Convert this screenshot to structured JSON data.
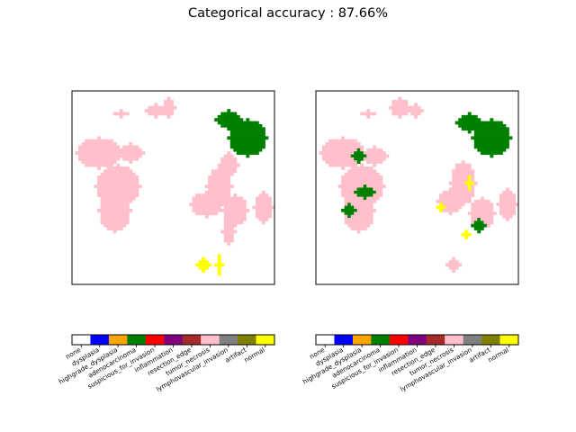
{
  "title": "Categorical accuracy : 87.66%",
  "chart_data": [
    {
      "type": "heatmap",
      "name": "ground-truth",
      "grid": [
        64,
        64
      ],
      "categories": [
        "none",
        "dysplasia",
        "highgrade_dysplasia",
        "adenocarcinoma",
        "suspicious_for_invasion",
        "inflammation",
        "resection_edge",
        "tumor_necrosis",
        "lymphovascular_invasion",
        "artifact",
        "normal"
      ],
      "colors": [
        "#ffffff",
        "#0000ff",
        "#ffa500",
        "#008000",
        "#ff0000",
        "#800080",
        "#a52a2a",
        "#ffc0cb",
        "#808080",
        "#808000",
        "#ffff00"
      ],
      "regions": [
        {
          "category": "tumor_necrosis",
          "cx": 26,
          "cy": 6,
          "rx": 3,
          "ry": 2
        },
        {
          "category": "tumor_necrosis",
          "cx": 30,
          "cy": 5,
          "rx": 2,
          "ry": 3
        },
        {
          "category": "tumor_necrosis",
          "cx": 15,
          "cy": 7,
          "rx": 2,
          "ry": 1
        },
        {
          "category": "tumor_necrosis",
          "cx": 8,
          "cy": 20,
          "rx": 7,
          "ry": 5
        },
        {
          "category": "tumor_necrosis",
          "cx": 18,
          "cy": 20,
          "rx": 4,
          "ry": 3
        },
        {
          "category": "tumor_necrosis",
          "cx": 14,
          "cy": 31,
          "rx": 7,
          "ry": 7
        },
        {
          "category": "tumor_necrosis",
          "cx": 13,
          "cy": 39,
          "rx": 5,
          "ry": 7
        },
        {
          "category": "tumor_necrosis",
          "cx": 46,
          "cy": 31,
          "rx": 4,
          "ry": 6
        },
        {
          "category": "tumor_necrosis",
          "cx": 42,
          "cy": 37,
          "rx": 5,
          "ry": 4
        },
        {
          "category": "tumor_necrosis",
          "cx": 49,
          "cy": 24,
          "rx": 3,
          "ry": 4
        },
        {
          "category": "tumor_necrosis",
          "cx": 51,
          "cy": 39,
          "rx": 4,
          "ry": 5
        },
        {
          "category": "tumor_necrosis",
          "cx": 60,
          "cy": 38,
          "rx": 3,
          "ry": 5
        },
        {
          "category": "tumor_necrosis",
          "cx": 49,
          "cy": 46,
          "rx": 2,
          "ry": 4
        },
        {
          "category": "adenocarcinoma",
          "cx": 55,
          "cy": 15,
          "rx": 6,
          "ry": 6
        },
        {
          "category": "adenocarcinoma",
          "cx": 49,
          "cy": 9,
          "rx": 4,
          "ry": 3
        },
        {
          "category": "normal",
          "cx": 41,
          "cy": 57,
          "rx": 2,
          "ry": 2
        },
        {
          "category": "normal",
          "cx": 46,
          "cy": 57,
          "rx": 1,
          "ry": 3
        }
      ]
    },
    {
      "type": "heatmap",
      "name": "prediction",
      "grid": [
        64,
        64
      ],
      "categories": [
        "none",
        "dysplasia",
        "highgrade_dysplasia",
        "adenocarcinoma",
        "suspicious_for_invasion",
        "inflammation",
        "resection_edge",
        "tumor_necrosis",
        "lymphovascular_invasion",
        "artifact",
        "normal"
      ],
      "colors": [
        "#ffffff",
        "#0000ff",
        "#ffa500",
        "#008000",
        "#ff0000",
        "#800080",
        "#a52a2a",
        "#ffc0cb",
        "#808080",
        "#808000",
        "#ffff00"
      ],
      "regions": [
        {
          "category": "tumor_necrosis",
          "cx": 26,
          "cy": 5,
          "rx": 3,
          "ry": 3
        },
        {
          "category": "tumor_necrosis",
          "cx": 31,
          "cy": 6,
          "rx": 2,
          "ry": 2
        },
        {
          "category": "tumor_necrosis",
          "cx": 16,
          "cy": 7,
          "rx": 2,
          "ry": 1
        },
        {
          "category": "tumor_necrosis",
          "cx": 8,
          "cy": 20,
          "rx": 7,
          "ry": 5
        },
        {
          "category": "tumor_necrosis",
          "cx": 18,
          "cy": 21,
          "rx": 4,
          "ry": 3
        },
        {
          "category": "tumor_necrosis",
          "cx": 14,
          "cy": 31,
          "rx": 7,
          "ry": 7
        },
        {
          "category": "tumor_necrosis",
          "cx": 13,
          "cy": 39,
          "rx": 5,
          "ry": 7
        },
        {
          "category": "tumor_necrosis",
          "cx": 46,
          "cy": 30,
          "rx": 4,
          "ry": 7
        },
        {
          "category": "tumor_necrosis",
          "cx": 42,
          "cy": 36,
          "rx": 4,
          "ry": 4
        },
        {
          "category": "tumor_necrosis",
          "cx": 52,
          "cy": 40,
          "rx": 4,
          "ry": 5
        },
        {
          "category": "tumor_necrosis",
          "cx": 60,
          "cy": 37,
          "rx": 3,
          "ry": 5
        },
        {
          "category": "tumor_necrosis",
          "cx": 43,
          "cy": 57,
          "rx": 2,
          "ry": 2
        },
        {
          "category": "adenocarcinoma",
          "cx": 55,
          "cy": 15,
          "rx": 6,
          "ry": 6
        },
        {
          "category": "adenocarcinoma",
          "cx": 48,
          "cy": 10,
          "rx": 4,
          "ry": 3
        },
        {
          "category": "adenocarcinoma",
          "cx": 15,
          "cy": 33,
          "rx": 3,
          "ry": 2
        },
        {
          "category": "adenocarcinoma",
          "cx": 10,
          "cy": 39,
          "rx": 2,
          "ry": 2
        },
        {
          "category": "adenocarcinoma",
          "cx": 13,
          "cy": 21,
          "rx": 2,
          "ry": 2
        },
        {
          "category": "adenocarcinoma",
          "cx": 51,
          "cy": 44,
          "rx": 2,
          "ry": 2
        },
        {
          "category": "normal",
          "cx": 48,
          "cy": 30,
          "rx": 1,
          "ry": 2
        },
        {
          "category": "normal",
          "cx": 39,
          "cy": 38,
          "rx": 1,
          "ry": 1
        },
        {
          "category": "normal",
          "cx": 47,
          "cy": 47,
          "rx": 1,
          "ry": 1
        }
      ]
    }
  ],
  "legend_labels": [
    "none",
    "dysplasia",
    "highgrade_dysplasia",
    "adenocarcinoma",
    "suspicious_for_invasion",
    "inflammation",
    "resection_edge",
    "tumor_necrosis",
    "lymphovascular_invasion",
    "artifact",
    "normal"
  ]
}
